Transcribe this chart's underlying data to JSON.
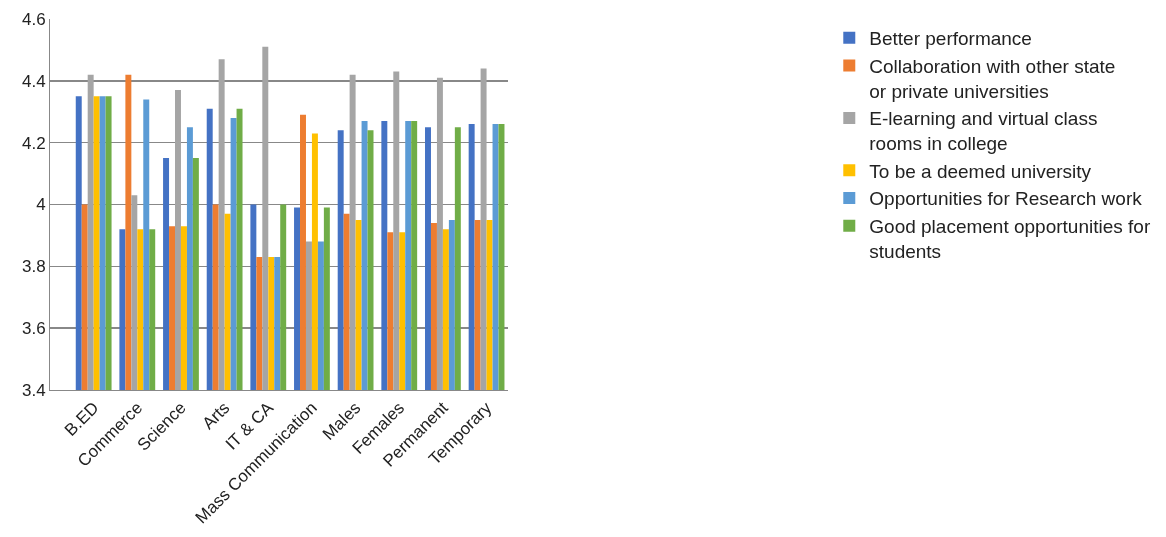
{
  "chart_data": {
    "type": "bar",
    "categories": [
      "B.ED",
      "Commerce",
      "Science",
      "Arts",
      "IT & CA",
      "Mass Communication",
      "Males",
      "Females",
      "Permanent",
      "Temporary"
    ],
    "series": [
      {
        "name": "Better performance",
        "color": "#4472c4",
        "values": [
          4.35,
          3.92,
          4.15,
          4.31,
          4.0,
          3.99,
          4.24,
          4.27,
          4.25,
          4.26
        ]
      },
      {
        "name": "Collaboration with other state or private universities",
        "color": "#ed7d31",
        "values": [
          4.0,
          4.42,
          3.93,
          4.0,
          3.83,
          4.29,
          3.97,
          3.91,
          3.94,
          3.95
        ]
      },
      {
        "name": "E-learning and virtual class rooms in college",
        "color": "#a5a5a5",
        "values": [
          4.42,
          4.03,
          4.37,
          4.47,
          4.51,
          3.88,
          4.42,
          4.43,
          4.41,
          4.44
        ]
      },
      {
        "name": "To be a deemed university",
        "color": "#ffc000",
        "values": [
          4.35,
          3.92,
          3.93,
          3.97,
          3.83,
          4.23,
          3.95,
          3.91,
          3.92,
          3.95
        ]
      },
      {
        "name": "Opportunities for Research work",
        "color": "#5b9bd5",
        "values": [
          4.35,
          4.34,
          4.25,
          4.28,
          3.83,
          3.88,
          4.27,
          4.27,
          3.95,
          4.26
        ]
      },
      {
        "name": "Good placement opportunities for students",
        "color": "#70ad47",
        "values": [
          4.35,
          3.92,
          4.15,
          4.31,
          4.0,
          3.99,
          4.24,
          4.27,
          4.25,
          4.26
        ]
      }
    ],
    "ylim": [
      3.4,
      4.6
    ],
    "yticks": [
      3.4,
      3.6,
      3.8,
      4,
      4.2,
      4.4,
      4.6
    ],
    "grid": "y",
    "legend": "right"
  }
}
